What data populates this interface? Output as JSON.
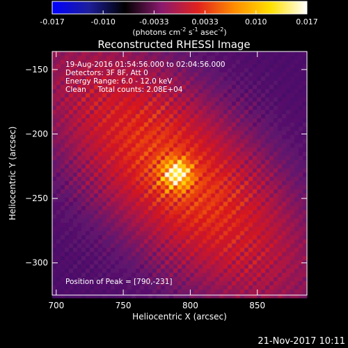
{
  "chart_data": {
    "type": "heatmap",
    "title": "Reconstructed RHESSI Image",
    "xlabel": "Heliocentric X (arcsec)",
    "ylabel": "Heliocentric Y (arcsec)",
    "x_range": [
      697,
      887
    ],
    "y_range": [
      -325,
      -136
    ],
    "x_ticks": [
      700,
      750,
      800,
      850
    ],
    "y_ticks": [
      -300,
      -250,
      -200,
      -150
    ],
    "colorbar": {
      "range": [
        -0.017,
        0.017
      ],
      "ticks": [
        "-0.017",
        "-0.010",
        "-0.0033",
        "0.0033",
        "0.010",
        "0.017"
      ],
      "label_prefix": "(photons cm",
      "label_exp1": "-2",
      "label_mid": " s",
      "label_exp2": "-1",
      "label_mid2": " asec",
      "label_exp3": "-2",
      "label_suffix": ")",
      "colors": [
        "#0000ff",
        "#1e1e9c",
        "#000000",
        "#8a1a6e",
        "#e0221e",
        "#ff8c00",
        "#ffe000",
        "#ffffff"
      ]
    },
    "peak": {
      "x": 790,
      "y": -231,
      "value": 0.017
    },
    "annotations": [
      "19-Aug-2016 01:54:56.000 to 02:04:56.000",
      "Detectors: 3F 8F, Att 0",
      "Energy Range: 6.0 - 12.0 keV",
      "Clean     Total counts: 2.08E+04"
    ],
    "peak_label": "Position of Peak = [790,-231]"
  },
  "timestamp": "21-Nov-2017 10:11"
}
